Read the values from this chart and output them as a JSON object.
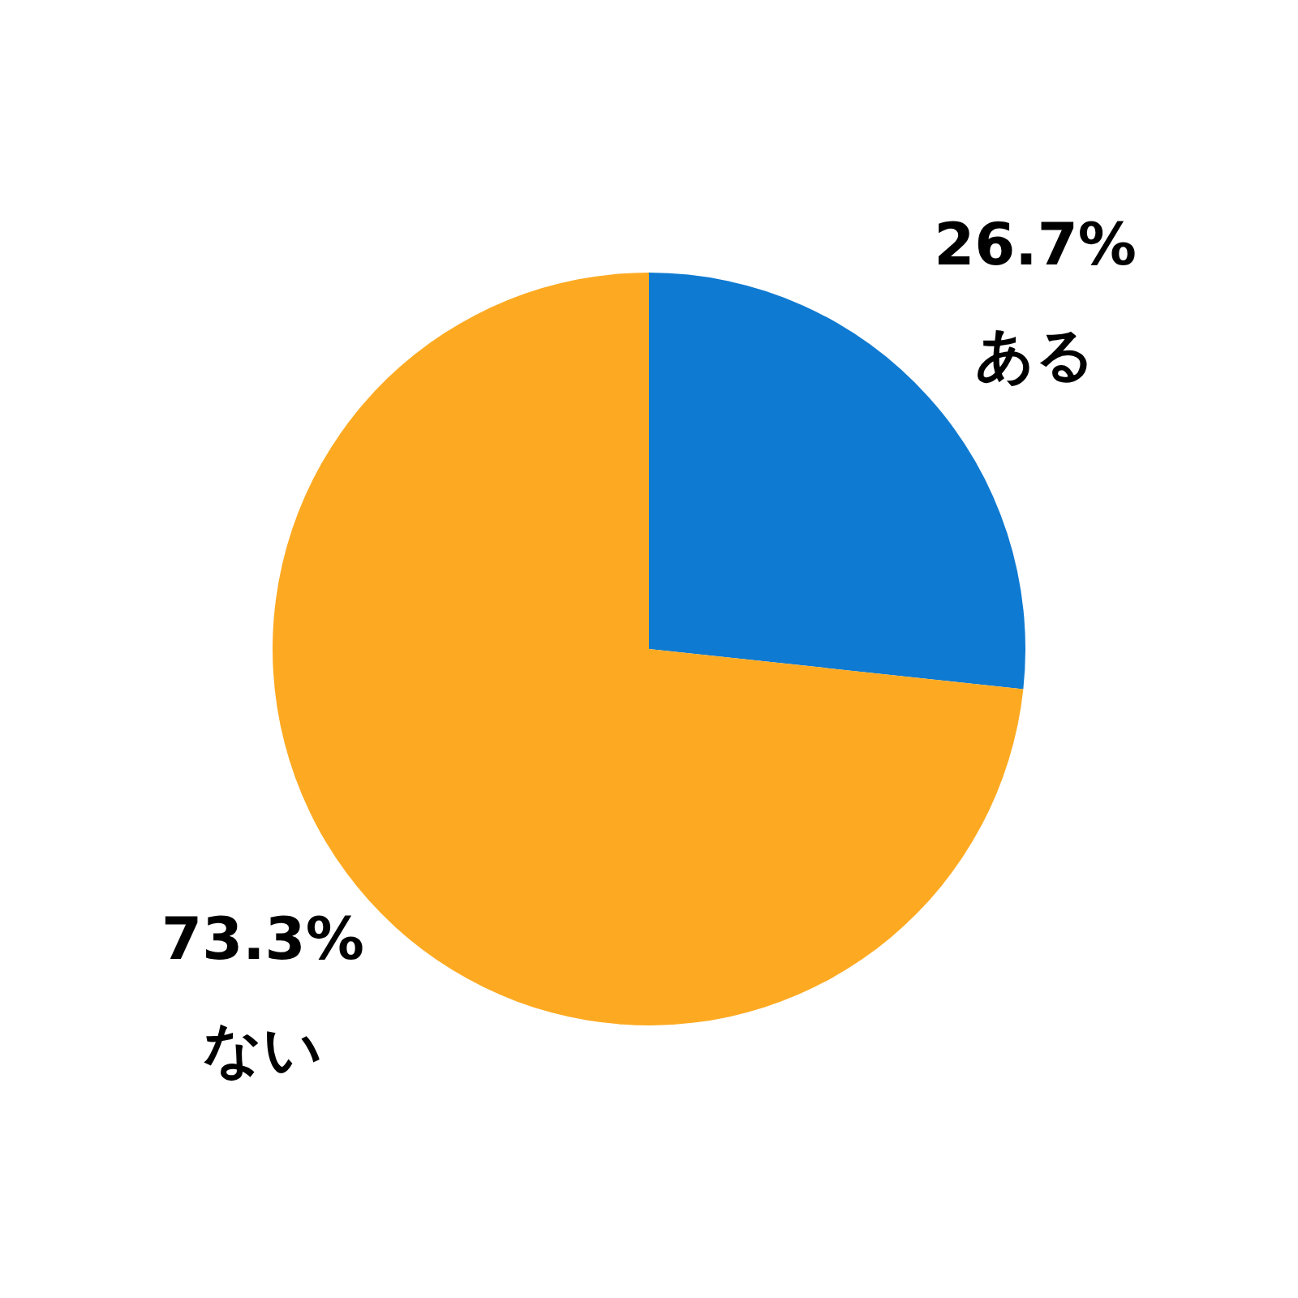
{
  "chart_data": {
    "type": "pie",
    "categories": [
      "ある",
      "ない"
    ],
    "values": [
      26.7,
      73.3
    ],
    "colors": [
      "#0f7ad1",
      "#fdaa22"
    ],
    "value_labels": [
      "26.7%",
      "73.3%"
    ]
  }
}
